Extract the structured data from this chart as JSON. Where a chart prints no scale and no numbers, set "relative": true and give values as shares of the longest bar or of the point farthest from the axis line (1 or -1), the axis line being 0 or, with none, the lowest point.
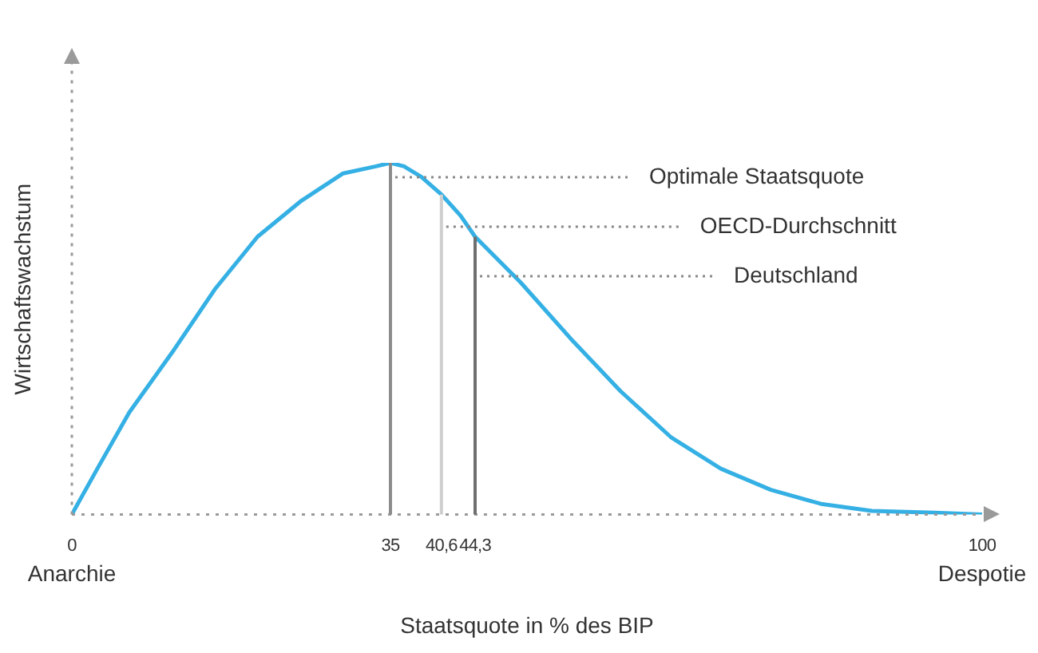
{
  "chart_data": {
    "type": "line",
    "relative": true,
    "xlabel": "Staatsquote in % des BIP",
    "ylabel": "Wirtschaftswachstum",
    "x": [
      0,
      2.8,
      6.3,
      11.0,
      15.7,
      20.4,
      25.1,
      29.8,
      33.4,
      35,
      36.5,
      38.4,
      40.6,
      42.7,
      44.3,
      49.3,
      54.8,
      60.3,
      65.8,
      71.3,
      76.8,
      82.3,
      87.9,
      94.8,
      100
    ],
    "series": [
      {
        "color": "#35b0e4",
        "values": [
          0,
          0.13,
          0.29,
          0.46,
          0.64,
          0.79,
          0.89,
          0.97,
          0.99,
          1,
          0.99,
          0.96,
          0.91,
          0.85,
          0.79,
          0.66,
          0.5,
          0.35,
          0.22,
          0.13,
          0.07,
          0.03,
          0.01,
          0.005,
          0
        ]
      }
    ],
    "xlim": [
      0,
      100
    ],
    "xticks": [
      0,
      35,
      {
        "value": 40.6,
        "label": "40,6"
      },
      {
        "value": 44.3,
        "label": "44,3"
      },
      100
    ],
    "ref_lines": [
      {
        "axis": "x",
        "value": 35,
        "label": "Optimale Staatsquote",
        "color": "#8c8c8c"
      },
      {
        "axis": "x",
        "value": 40.6,
        "label": "OECD-Durchschnitt",
        "color": "#cfcfcf"
      },
      {
        "axis": "x",
        "value": 44.3,
        "label": "Deutschland",
        "color": "#6e6e6e"
      }
    ],
    "annotations": [
      "Anarchie",
      "Despotie"
    ]
  }
}
